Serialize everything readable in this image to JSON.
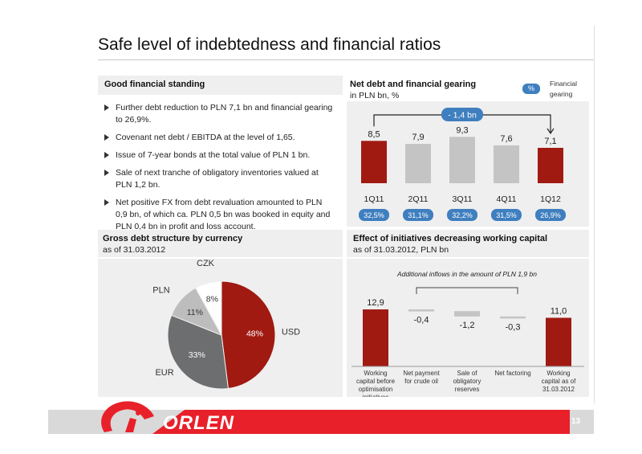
{
  "title": "Safe level of indebtedness and financial ratios",
  "good_standing": {
    "title": "Good financial standing",
    "bullets": [
      "Further debt reduction to PLN 7,1 bn and financial gearing to 26,9%.",
      "Covenant net debt / EBITDA at the level of 1,65.",
      "Issue of 7-year bonds at the total value of PLN 1 bn.",
      "Sale of next tranche of obligatory inventories valued at PLN 1,2 bn.",
      "Net positive FX from debt revaluation amounted to PLN 0,9 bn, of which ca. PLN 0,5 bn was booked in equity and PLN 0,4 bn in profit and loss account."
    ]
  },
  "legend": {
    "pill": "%",
    "text": "Financial gearing"
  },
  "colors": {
    "red": "#a01a12",
    "gray_bar": "#c4c4c4",
    "blue_pill": "#3f7fbf",
    "dark_gray": "#6d6e70",
    "light_gray": "#bdbdbd"
  },
  "chart_data": [
    {
      "type": "bar",
      "title": "Net debt and financial gearing",
      "subtitle": "in PLN bn, %",
      "categories": [
        "1Q11",
        "2Q11",
        "3Q11",
        "4Q11",
        "1Q12"
      ],
      "values": [
        8.5,
        7.9,
        9.3,
        7.6,
        7.1
      ],
      "value_labels": [
        "8,5",
        "7,9",
        "9,3",
        "7,6",
        "7,1"
      ],
      "highlight": [
        true,
        false,
        false,
        false,
        true
      ],
      "gearing_labels": [
        "32,5%",
        "31,1%",
        "32,2%",
        "31,5%",
        "26,9%"
      ],
      "annotation": "- 1,4 bn"
    },
    {
      "type": "pie",
      "title": "Gross debt structure by currency",
      "subtitle": "as of 31.03.2012",
      "labels": [
        "USD",
        "EUR",
        "PLN",
        "CZK"
      ],
      "values": [
        48,
        33,
        11,
        8
      ],
      "value_labels": [
        "48%",
        "33%",
        "11%",
        "8%"
      ],
      "colors": [
        "#a01a12",
        "#6d6e70",
        "#bdbdbd",
        "#ffffff"
      ]
    },
    {
      "type": "bar",
      "subtype": "waterfall",
      "title": "Effect of initiatives decreasing working capital",
      "subtitle": "as of 31.03.2012, PLN bn",
      "annotation": "Additional inflows in the amount of PLN 1,9 bn",
      "categories": [
        "Working capital before optimisation initiatives",
        "Net payment for crude oil",
        "Sale of obligatory reserves",
        "Net factoring",
        "Working capital as of 31.03.2012"
      ],
      "values": [
        12.9,
        -0.4,
        -1.2,
        -0.3,
        11.0
      ],
      "value_labels": [
        "12,9",
        "-0,4",
        "-1,2",
        "-0,3",
        "11,0"
      ]
    }
  ],
  "footer": {
    "logo": "ORLEN",
    "page": "13"
  }
}
